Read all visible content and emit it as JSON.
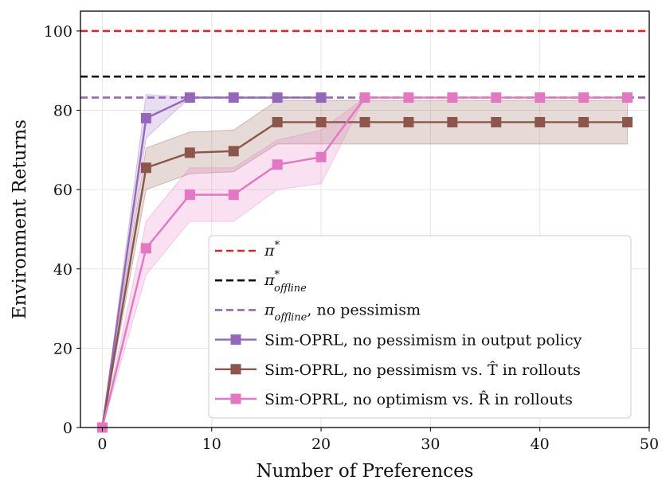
{
  "chart_data": {
    "type": "line",
    "xlabel": "Number of Preferences",
    "ylabel": "Environment Returns",
    "xlim": [
      -2,
      50
    ],
    "ylim": [
      0,
      105
    ],
    "x_ticks": [
      0,
      10,
      20,
      30,
      40,
      50
    ],
    "y_ticks": [
      0,
      20,
      40,
      60,
      80,
      100
    ],
    "grid": true,
    "legend_position": "lower-right",
    "reference_lines": [
      {
        "name": "π*",
        "label_base": "π",
        "label_sup": "*",
        "label_sub": "",
        "label_suffix": "",
        "value": 100,
        "color": "#d62728",
        "style": "dashed"
      },
      {
        "name": "π*_offline",
        "label_base": "π",
        "label_sup": "*",
        "label_sub": "offline",
        "label_suffix": "",
        "value": 88.5,
        "color": "#111111",
        "style": "dashed"
      },
      {
        "name": "π_offline, no pessimism",
        "label_base": "π",
        "label_sup": "",
        "label_sub": "offline",
        "label_suffix": ", no pessimism",
        "value": 83.2,
        "color": "#9467bd",
        "style": "dashed"
      }
    ],
    "series": [
      {
        "name": "Sim-OPRL, no pessimism in output policy",
        "label": "Sim-OPRL, no pessimism in output policy",
        "color": "#9467bd",
        "x": [
          0,
          4,
          8,
          12,
          16,
          20
        ],
        "values": [
          0,
          78,
          83.2,
          83.2,
          83.2,
          83.2
        ],
        "lower": [
          0,
          73,
          83.2,
          83.2,
          83.2,
          83.2
        ],
        "upper": [
          0,
          84,
          83.2,
          83.2,
          83.2,
          83.2
        ]
      },
      {
        "name": "Sim-OPRL, no pessimism vs. T̂ in rollouts",
        "label": "Sim-OPRL, no pessimism vs. T̂ in rollouts",
        "color": "#8c564b",
        "x": [
          0,
          4,
          8,
          12,
          16,
          20,
          24,
          28,
          32,
          36,
          40,
          44,
          48
        ],
        "values": [
          0,
          65.5,
          69.3,
          69.7,
          77,
          77,
          77,
          77,
          77,
          77,
          77,
          77,
          77
        ],
        "lower": [
          0,
          60,
          64,
          64.5,
          71.5,
          71.5,
          71.5,
          71.5,
          71.5,
          71.5,
          71.5,
          71.5,
          71.5
        ],
        "upper": [
          0,
          70.5,
          74.5,
          75,
          82.5,
          82.5,
          82.5,
          82.5,
          82.5,
          82.5,
          82.5,
          82.5,
          82.5
        ]
      },
      {
        "name": "Sim-OPRL, no optimism vs. R̂ in rollouts",
        "label": "Sim-OPRL, no optimism vs. R̂ in rollouts",
        "color": "#e377c2",
        "x": [
          0,
          4,
          8,
          12,
          16,
          20,
          24,
          28,
          32,
          36,
          40,
          44,
          48
        ],
        "values": [
          0,
          45.2,
          58.7,
          58.7,
          66.3,
          68.2,
          83.2,
          83.2,
          83.2,
          83.2,
          83.2,
          83.2,
          83.2
        ],
        "lower": [
          0,
          38.5,
          52,
          52,
          60,
          61.5,
          83.2,
          83.2,
          83.2,
          83.2,
          83.2,
          83.2,
          83.2
        ],
        "upper": [
          0,
          52,
          65.5,
          65.5,
          72.5,
          75,
          83.2,
          83.2,
          83.2,
          83.2,
          83.2,
          83.2,
          83.2
        ]
      }
    ]
  }
}
